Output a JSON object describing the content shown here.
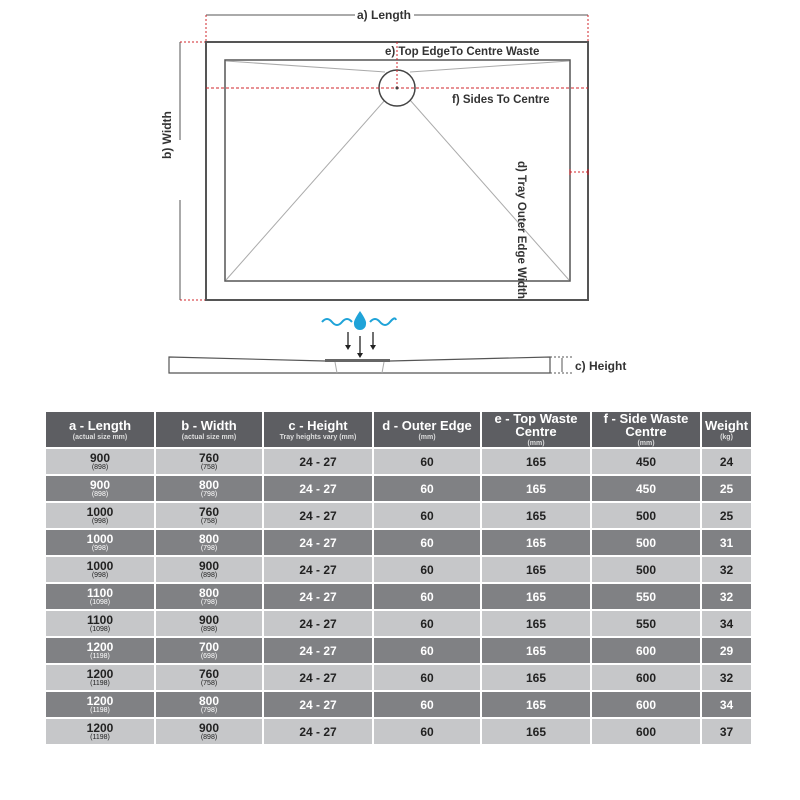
{
  "diagram": {
    "length_label": "a) Length",
    "width_label": "b) Width",
    "height_label": "c) Height",
    "outer_edge_label": "d) Tray Outer Edge Width",
    "top_edge_label": "e) Top EdgeTo Centre Waste",
    "sides_label": "f) Sides To Centre",
    "colors": {
      "line": "#444444",
      "dash": "#d0242b",
      "water": "#1fa3d8"
    }
  },
  "table": {
    "headers": [
      {
        "main": "a - Length",
        "sub": "(actual size mm)"
      },
      {
        "main": "b - Width",
        "sub": "(actual size mm)"
      },
      {
        "main": "c - Height",
        "sub": "Tray heights vary (mm)"
      },
      {
        "main": "d - Outer Edge",
        "sub": "(mm)"
      },
      {
        "main": "e - Top Waste Centre",
        "sub": "(mm)"
      },
      {
        "main": "f - Side Waste Centre",
        "sub": "(mm)"
      },
      {
        "main": "Weight",
        "sub": "(kg)"
      }
    ],
    "rows": [
      {
        "length": "900",
        "length_actual": "(898)",
        "width": "760",
        "width_actual": "(758)",
        "height": "24 - 27",
        "outer": "60",
        "top": "165",
        "side": "450",
        "weight": "24"
      },
      {
        "length": "900",
        "length_actual": "(898)",
        "width": "800",
        "width_actual": "(798)",
        "height": "24 - 27",
        "outer": "60",
        "top": "165",
        "side": "450",
        "weight": "25"
      },
      {
        "length": "1000",
        "length_actual": "(998)",
        "width": "760",
        "width_actual": "(758)",
        "height": "24 - 27",
        "outer": "60",
        "top": "165",
        "side": "500",
        "weight": "25"
      },
      {
        "length": "1000",
        "length_actual": "(998)",
        "width": "800",
        "width_actual": "(798)",
        "height": "24 - 27",
        "outer": "60",
        "top": "165",
        "side": "500",
        "weight": "31"
      },
      {
        "length": "1000",
        "length_actual": "(998)",
        "width": "900",
        "width_actual": "(898)",
        "height": "24 - 27",
        "outer": "60",
        "top": "165",
        "side": "500",
        "weight": "32"
      },
      {
        "length": "1100",
        "length_actual": "(1098)",
        "width": "800",
        "width_actual": "(798)",
        "height": "24 - 27",
        "outer": "60",
        "top": "165",
        "side": "550",
        "weight": "32"
      },
      {
        "length": "1100",
        "length_actual": "(1098)",
        "width": "900",
        "width_actual": "(898)",
        "height": "24 - 27",
        "outer": "60",
        "top": "165",
        "side": "550",
        "weight": "34"
      },
      {
        "length": "1200",
        "length_actual": "(1198)",
        "width": "700",
        "width_actual": "(698)",
        "height": "24 - 27",
        "outer": "60",
        "top": "165",
        "side": "600",
        "weight": "29"
      },
      {
        "length": "1200",
        "length_actual": "(1198)",
        "width": "760",
        "width_actual": "(758)",
        "height": "24 - 27",
        "outer": "60",
        "top": "165",
        "side": "600",
        "weight": "32"
      },
      {
        "length": "1200",
        "length_actual": "(1198)",
        "width": "800",
        "width_actual": "(798)",
        "height": "24 - 27",
        "outer": "60",
        "top": "165",
        "side": "600",
        "weight": "34"
      },
      {
        "length": "1200",
        "length_actual": "(1198)",
        "width": "900",
        "width_actual": "(898)",
        "height": "24 - 27",
        "outer": "60",
        "top": "165",
        "side": "600",
        "weight": "37"
      }
    ]
  }
}
